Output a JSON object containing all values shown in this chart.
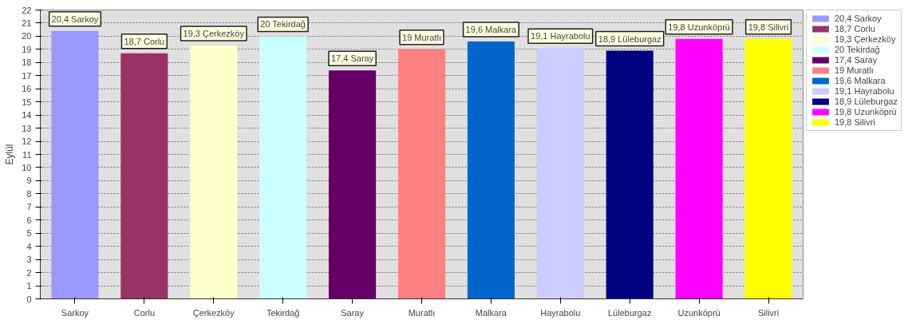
{
  "chart_data": {
    "type": "bar",
    "ylabel": "Eylül",
    "categories": [
      "Sarkoy",
      "Corlu",
      "Çerkezköy",
      "Tekirdağ",
      "Saray",
      "Muratlı",
      "Malkara",
      "Hayrabolu",
      "Lüleburgaz",
      "Uzunköprü",
      "Silivri"
    ],
    "series": [
      {
        "name": "20,4 Sarkoy",
        "color": "#9999ff",
        "values": [
          20.4,
          null,
          null,
          null,
          null,
          null,
          null,
          null,
          null,
          null,
          null
        ],
        "value_labels": [
          "20,4 Sarkoy",
          null,
          null,
          null,
          null,
          null,
          null,
          null,
          null,
          null,
          null
        ]
      },
      {
        "name": "18,7 Corlu",
        "color": "#993366",
        "values": [
          null,
          18.7,
          null,
          null,
          null,
          null,
          null,
          null,
          null,
          null,
          null
        ],
        "value_labels": [
          null,
          "18,7 Corlu",
          null,
          null,
          null,
          null,
          null,
          null,
          null,
          null,
          null
        ]
      },
      {
        "name": "19,3 Çerkezköy",
        "color": "#ffffcc",
        "values": [
          null,
          null,
          19.3,
          null,
          null,
          null,
          null,
          null,
          null,
          null,
          null
        ],
        "value_labels": [
          null,
          null,
          "19,3 Çerkezköy",
          null,
          null,
          null,
          null,
          null,
          null,
          null,
          null
        ]
      },
      {
        "name": "20 Tekirdağ",
        "color": "#ccffff",
        "values": [
          null,
          null,
          null,
          20,
          null,
          null,
          null,
          null,
          null,
          null,
          null
        ],
        "value_labels": [
          null,
          null,
          null,
          "20 Tekirdağ",
          null,
          null,
          null,
          null,
          null,
          null,
          null
        ]
      },
      {
        "name": "17,4 Saray",
        "color": "#660066",
        "values": [
          null,
          null,
          null,
          null,
          17.4,
          null,
          null,
          null,
          null,
          null,
          null
        ],
        "value_labels": [
          null,
          null,
          null,
          null,
          "17,4 Saray",
          null,
          null,
          null,
          null,
          null,
          null
        ]
      },
      {
        "name": "19 Muratlı",
        "color": "#ff8080",
        "values": [
          null,
          null,
          null,
          null,
          null,
          19,
          null,
          null,
          null,
          null,
          null
        ],
        "value_labels": [
          null,
          null,
          null,
          null,
          null,
          "19 Muratlı",
          null,
          null,
          null,
          null,
          null
        ]
      },
      {
        "name": "19,6 Malkara",
        "color": "#0066cc",
        "values": [
          null,
          null,
          null,
          null,
          null,
          null,
          19.6,
          null,
          null,
          null,
          null
        ],
        "value_labels": [
          null,
          null,
          null,
          null,
          null,
          null,
          "19,6 Malkara",
          null,
          null,
          null,
          null
        ]
      },
      {
        "name": "19,1 Hayrabolu",
        "color": "#ccccff",
        "values": [
          null,
          null,
          null,
          null,
          null,
          null,
          null,
          19.1,
          null,
          null,
          null
        ],
        "value_labels": [
          null,
          null,
          null,
          null,
          null,
          null,
          null,
          "19,1 Hayrabolu",
          null,
          null,
          null
        ]
      },
      {
        "name": "18,9 Lüleburgaz",
        "color": "#000080",
        "values": [
          null,
          null,
          null,
          null,
          null,
          null,
          null,
          null,
          18.9,
          null,
          null
        ],
        "value_labels": [
          null,
          null,
          null,
          null,
          null,
          null,
          null,
          null,
          "18,9 Lüleburgaz",
          null,
          null
        ]
      },
      {
        "name": "19,8 Uzunköprü",
        "color": "#ff00ff",
        "values": [
          null,
          null,
          null,
          null,
          null,
          null,
          null,
          null,
          null,
          19.8,
          null
        ],
        "value_labels": [
          null,
          null,
          null,
          null,
          null,
          null,
          null,
          null,
          null,
          "19,8 Uzunköprü",
          null
        ]
      },
      {
        "name": "19,8 Silivri",
        "color": "#ffff00",
        "values": [
          null,
          null,
          null,
          null,
          null,
          null,
          null,
          null,
          null,
          null,
          19.8
        ],
        "value_labels": [
          null,
          null,
          null,
          null,
          null,
          null,
          null,
          null,
          null,
          null,
          "19,8 Silivri"
        ]
      }
    ],
    "ylim": [
      0,
      22
    ],
    "yticks": [
      0,
      1,
      2,
      3,
      4,
      5,
      6,
      7,
      8,
      9,
      10,
      11,
      12,
      13,
      14,
      15,
      16,
      17,
      18,
      19,
      20,
      21,
      22
    ],
    "grid": "y",
    "legend": "right"
  }
}
